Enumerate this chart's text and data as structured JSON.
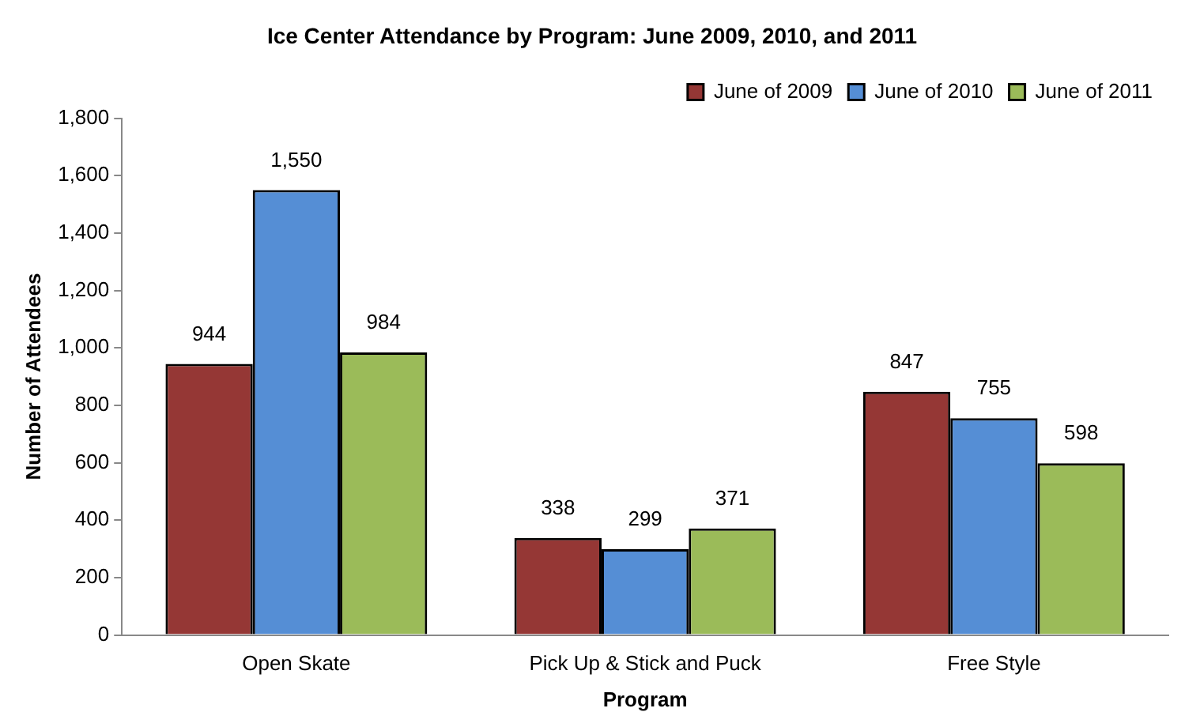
{
  "chart_data": {
    "type": "bar",
    "title": "Ice Center Attendance by Program: June 2009, 2010, and 2011",
    "xlabel": "Program",
    "ylabel": "Number of Attendees",
    "categories": [
      "Open Skate",
      "Pick Up & Stick and Puck",
      "Free Style"
    ],
    "series": [
      {
        "name": "June of 2009",
        "color": "#953735",
        "values": [
          944,
          338,
          847
        ],
        "value_labels": [
          "944",
          "338",
          "847"
        ]
      },
      {
        "name": "June of 2010",
        "color": "#558ed5",
        "values": [
          1550,
          299,
          755
        ],
        "value_labels": [
          "1,550",
          "299",
          "755"
        ]
      },
      {
        "name": "June of 2011",
        "color": "#9bbb59",
        "values": [
          984,
          371,
          598
        ],
        "value_labels": [
          "984",
          "371",
          "598"
        ]
      }
    ],
    "ylim": [
      0,
      1800
    ],
    "yticks": [
      0,
      {
        "value": 200,
        "label": "200"
      },
      {
        "value": 400,
        "label": "400"
      },
      {
        "value": 600,
        "label": "600"
      },
      {
        "value": 800,
        "label": "800"
      },
      {
        "value": 1000,
        "label": "1,000"
      },
      {
        "value": 1200,
        "label": "1,200"
      },
      {
        "value": 1400,
        "label": "1,400"
      },
      {
        "value": 1600,
        "label": "1,600"
      },
      {
        "value": 1800,
        "label": "1,800"
      }
    ],
    "grid": false,
    "legend": "top right"
  }
}
